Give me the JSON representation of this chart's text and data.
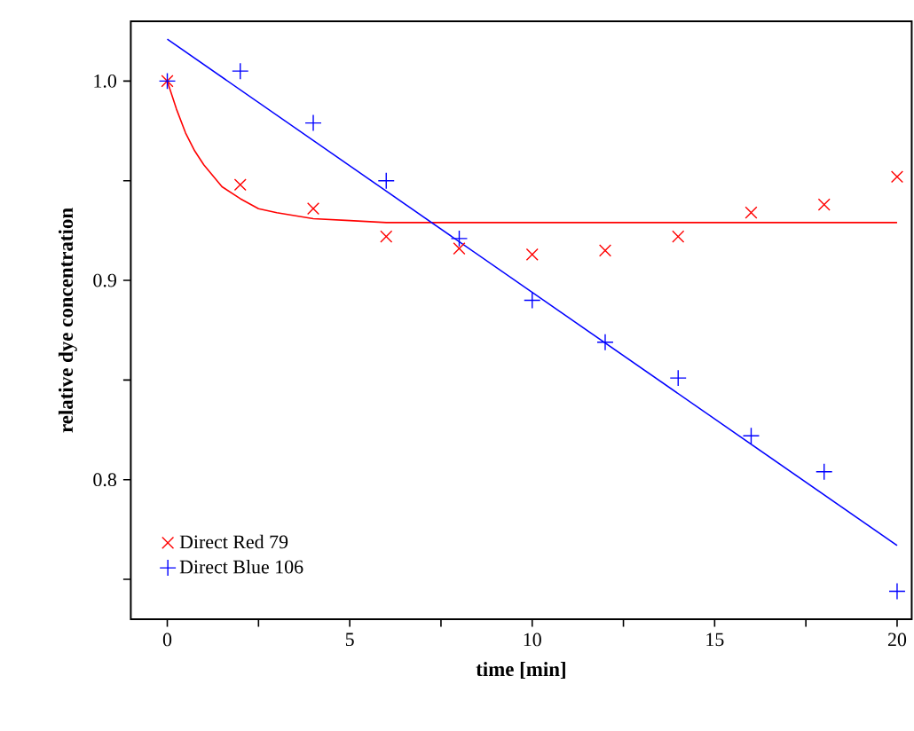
{
  "chart_data": {
    "type": "scatter",
    "xlabel": "time [min]",
    "ylabel": "relative dye concentration",
    "xlim": [
      -1,
      20.4
    ],
    "ylim": [
      0.73,
      1.03
    ],
    "xticks": [
      0,
      {
        "value": 2.5,
        "label": null
      },
      5,
      {
        "value": 7.5,
        "label": null
      },
      10,
      {
        "value": 12.5,
        "label": null
      },
      15,
      {
        "value": 17.5,
        "label": null
      },
      20
    ],
    "yticks": [
      {
        "value": 0.75,
        "label": null
      },
      0.8,
      {
        "value": 0.85,
        "label": null
      },
      0.9,
      {
        "value": 0.95,
        "label": null
      },
      {
        "value": 1.0,
        "label": "1.0"
      }
    ],
    "legend": "bottom left",
    "series": [
      {
        "type": "line",
        "color": "#ff0000",
        "marker": "none",
        "x": [
          0,
          0.25,
          0.5,
          0.75,
          1,
          1.5,
          2,
          2.5,
          3,
          4,
          5,
          6,
          20
        ],
        "values": [
          1.0,
          0.986,
          0.974,
          0.965,
          0.958,
          0.947,
          0.941,
          0.936,
          0.934,
          0.931,
          0.93,
          0.929,
          0.929
        ]
      },
      {
        "type": "line",
        "color": "#0000ff",
        "marker": "none",
        "x": [
          0,
          20
        ],
        "values": [
          1.021,
          0.767
        ]
      },
      {
        "name": "Direct Red 79",
        "color": "#ff0000",
        "marker": "cross",
        "x": [
          0,
          2,
          4,
          6,
          8,
          10,
          12,
          14,
          16,
          18,
          20
        ],
        "values": [
          1.0,
          0.948,
          0.936,
          0.922,
          0.916,
          0.913,
          0.915,
          0.922,
          0.934,
          0.938,
          0.952
        ]
      },
      {
        "name": "Direct Blue 106",
        "color": "#0000ff",
        "marker": "plus",
        "x": [
          0,
          2,
          4,
          6,
          8,
          10,
          12,
          14,
          16,
          18,
          20
        ],
        "values": [
          1.0,
          1.005,
          0.979,
          0.95,
          0.921,
          0.89,
          0.869,
          0.851,
          0.822,
          0.804,
          0.744
        ]
      }
    ]
  }
}
